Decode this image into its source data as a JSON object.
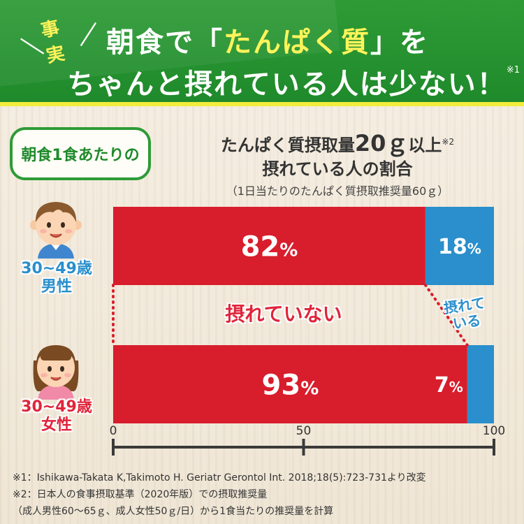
{
  "header": {
    "fact_tag": "事実",
    "line1_before": "朝食で「",
    "line1_highlight": "たんぱく質",
    "line1_after": "」を",
    "line2": "ちゃんと摂れている人は少ない！",
    "line2_note": "※1"
  },
  "badge": "朝食1食あたりの",
  "chart_title": {
    "line1_pre": "たんぱく質摂取量",
    "line1_big": "20ｇ",
    "line1_post": "以上",
    "line1_note": "※2",
    "line2": "摂れている人の割合",
    "line3": "（1日当たりのたんぱく質摂取推奨量60ｇ）"
  },
  "groups": {
    "male": {
      "age": "30~49歳",
      "sex": "男性"
    },
    "female": {
      "age": "30~49歳",
      "sex": "女性"
    }
  },
  "annotations": {
    "not_taking": "摂れていない",
    "taking_line1": "摂れて",
    "taking_line2": "いる"
  },
  "chart_data": {
    "type": "bar",
    "orientation": "horizontal",
    "stacked": true,
    "categories": [
      "30~49歳 男性",
      "30~49歳 女性"
    ],
    "series": [
      {
        "name": "摂れていない",
        "values": [
          82,
          93
        ],
        "labels": [
          "82%",
          "93%"
        ],
        "color": "#d81d2c"
      },
      {
        "name": "摂れている",
        "values": [
          18,
          7
        ],
        "labels": [
          "18%",
          "7%"
        ],
        "color": "#2a8fcc"
      }
    ],
    "xlim": [
      0,
      100
    ],
    "xticks": [
      0,
      50,
      100
    ],
    "grid": false,
    "legend": "none"
  },
  "colors": {
    "header_green": "#2e9b36",
    "highlight_yellow": "#fff45a",
    "red": "#d81d2c",
    "blue": "#2a8fcc",
    "axis": "#3a3a3a"
  },
  "footnotes": [
    "※1：Ishikawa-Takata K,Takimoto H. Geriatr Gerontol Int. 2018;18(5):723-731より改変",
    "※2：日本人の食事摂取基準（2020年版）での摂取推奨量",
    "（成人男性60～65ｇ、成人女性50ｇ/日）から1食当たりの推奨量を計算"
  ]
}
